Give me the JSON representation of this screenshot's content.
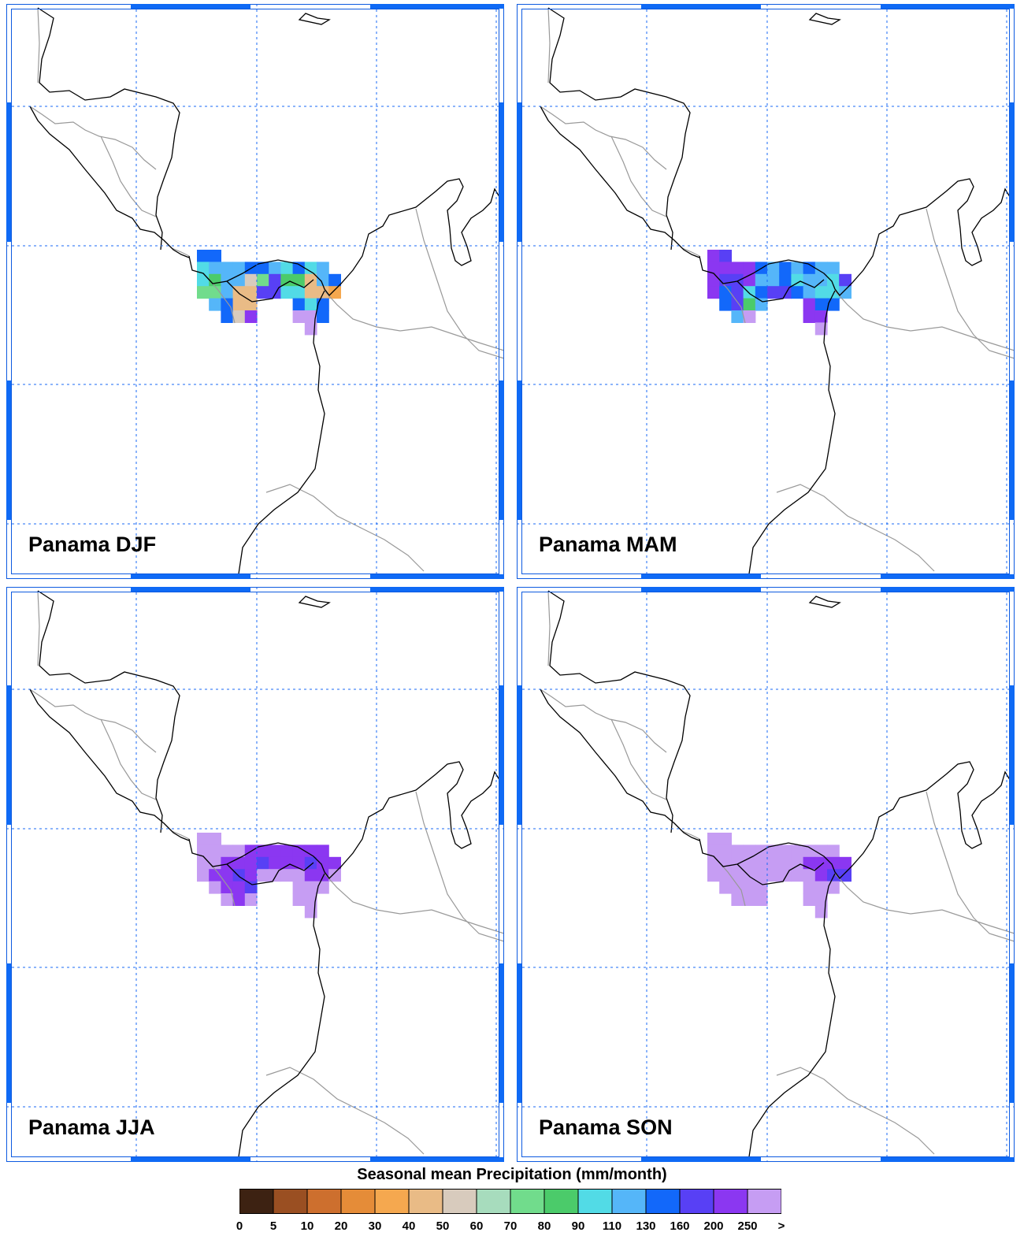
{
  "panels": [
    {
      "label": "Panama DJF",
      "season": "DJF"
    },
    {
      "label": "Panama MAM",
      "season": "MAM"
    },
    {
      "label": "Panama JJA",
      "season": "JJA"
    },
    {
      "label": "Panama SON",
      "season": "SON"
    }
  ],
  "legend": {
    "title": "Seasonal mean Precipitation (mm/month)",
    "ticks": [
      "0",
      "5",
      "10",
      "20",
      "30",
      "40",
      "50",
      "60",
      "70",
      "80",
      "90",
      "110",
      "130",
      "160",
      "200",
      "250",
      ">"
    ],
    "colors": [
      "#3d2212",
      "#9a4f22",
      "#cd6f2e",
      "#e58c38",
      "#f5a84f",
      "#e9bb86",
      "#d8cbbd",
      "#a7dcbd",
      "#71dc8c",
      "#4bcb6a",
      "#52dbe6",
      "#55b6f9",
      "#1268fa",
      "#5840f5",
      "#8b37f1",
      "#c69df3"
    ]
  },
  "map_style": {
    "grid_color": "#1a6af5",
    "coast_color": "#000000",
    "border_color": "#999999"
  },
  "precip_index": {
    "DJF": [
      [
        0,
        0,
        12
      ],
      [
        0,
        1,
        12
      ],
      [
        1,
        0,
        10
      ],
      [
        1,
        1,
        11
      ],
      [
        1,
        2,
        11
      ],
      [
        1,
        3,
        11
      ],
      [
        1,
        4,
        12
      ],
      [
        1,
        5,
        12
      ],
      [
        1,
        6,
        11
      ],
      [
        1,
        7,
        10
      ],
      [
        1,
        8,
        12
      ],
      [
        1,
        9,
        10
      ],
      [
        1,
        10,
        11
      ],
      [
        2,
        0,
        10
      ],
      [
        2,
        1,
        9
      ],
      [
        2,
        2,
        11
      ],
      [
        2,
        3,
        11
      ],
      [
        2,
        4,
        6
      ],
      [
        2,
        5,
        8
      ],
      [
        2,
        6,
        13
      ],
      [
        2,
        7,
        9
      ],
      [
        2,
        8,
        9
      ],
      [
        2,
        9,
        5
      ],
      [
        2,
        10,
        11
      ],
      [
        2,
        11,
        12
      ],
      [
        3,
        0,
        8
      ],
      [
        3,
        1,
        8
      ],
      [
        3,
        2,
        11
      ],
      [
        3,
        3,
        5
      ],
      [
        3,
        4,
        5
      ],
      [
        3,
        5,
        13
      ],
      [
        3,
        6,
        13
      ],
      [
        3,
        7,
        10
      ],
      [
        3,
        8,
        10
      ],
      [
        3,
        9,
        5
      ],
      [
        3,
        10,
        5
      ],
      [
        3,
        11,
        4
      ],
      [
        4,
        1,
        11
      ],
      [
        4,
        2,
        12
      ],
      [
        4,
        3,
        5
      ],
      [
        4,
        4,
        5
      ],
      [
        4,
        8,
        12
      ],
      [
        4,
        9,
        10
      ],
      [
        4,
        10,
        12
      ],
      [
        5,
        2,
        12
      ],
      [
        5,
        3,
        6
      ],
      [
        5,
        4,
        14
      ],
      [
        5,
        8,
        15
      ],
      [
        5,
        9,
        15
      ],
      [
        5,
        10,
        12
      ],
      [
        6,
        9,
        15
      ]
    ],
    "MAM": [
      [
        0,
        0,
        14
      ],
      [
        0,
        1,
        13
      ],
      [
        1,
        0,
        14
      ],
      [
        1,
        1,
        14
      ],
      [
        1,
        2,
        14
      ],
      [
        1,
        3,
        14
      ],
      [
        1,
        4,
        12
      ],
      [
        1,
        5,
        11
      ],
      [
        1,
        6,
        12
      ],
      [
        1,
        7,
        11
      ],
      [
        1,
        8,
        12
      ],
      [
        1,
        9,
        11
      ],
      [
        1,
        10,
        11
      ],
      [
        2,
        0,
        14
      ],
      [
        2,
        1,
        13
      ],
      [
        2,
        2,
        13
      ],
      [
        2,
        3,
        14
      ],
      [
        2,
        4,
        11
      ],
      [
        2,
        5,
        11
      ],
      [
        2,
        6,
        12
      ],
      [
        2,
        7,
        10
      ],
      [
        2,
        8,
        11
      ],
      [
        2,
        9,
        11
      ],
      [
        2,
        10,
        10
      ],
      [
        2,
        11,
        13
      ],
      [
        3,
        0,
        14
      ],
      [
        3,
        1,
        12
      ],
      [
        3,
        2,
        13
      ],
      [
        3,
        3,
        10
      ],
      [
        3,
        4,
        12
      ],
      [
        3,
        5,
        13
      ],
      [
        3,
        6,
        13
      ],
      [
        3,
        7,
        12
      ],
      [
        3,
        8,
        11
      ],
      [
        3,
        9,
        10
      ],
      [
        3,
        10,
        10
      ],
      [
        3,
        11,
        11
      ],
      [
        4,
        1,
        12
      ],
      [
        4,
        2,
        13
      ],
      [
        4,
        3,
        9
      ],
      [
        4,
        4,
        11
      ],
      [
        4,
        8,
        14
      ],
      [
        4,
        9,
        12
      ],
      [
        4,
        10,
        12
      ],
      [
        5,
        2,
        11
      ],
      [
        5,
        3,
        15
      ],
      [
        5,
        8,
        14
      ],
      [
        5,
        9,
        14
      ],
      [
        6,
        9,
        15
      ]
    ],
    "JJA": [
      [
        0,
        0,
        15
      ],
      [
        0,
        1,
        15
      ],
      [
        1,
        0,
        15
      ],
      [
        1,
        1,
        15
      ],
      [
        1,
        2,
        15
      ],
      [
        1,
        3,
        15
      ],
      [
        1,
        4,
        14
      ],
      [
        1,
        5,
        14
      ],
      [
        1,
        6,
        14
      ],
      [
        1,
        7,
        14
      ],
      [
        1,
        8,
        14
      ],
      [
        1,
        9,
        14
      ],
      [
        1,
        10,
        14
      ],
      [
        2,
        0,
        15
      ],
      [
        2,
        1,
        15
      ],
      [
        2,
        2,
        14
      ],
      [
        2,
        3,
        14
      ],
      [
        2,
        4,
        14
      ],
      [
        2,
        5,
        13
      ],
      [
        2,
        6,
        14
      ],
      [
        2,
        7,
        14
      ],
      [
        2,
        8,
        14
      ],
      [
        2,
        9,
        13
      ],
      [
        2,
        10,
        14
      ],
      [
        2,
        11,
        14
      ],
      [
        3,
        0,
        15
      ],
      [
        3,
        1,
        14
      ],
      [
        3,
        2,
        14
      ],
      [
        3,
        3,
        13
      ],
      [
        3,
        4,
        14
      ],
      [
        3,
        5,
        15
      ],
      [
        3,
        6,
        15
      ],
      [
        3,
        7,
        15
      ],
      [
        3,
        8,
        15
      ],
      [
        3,
        9,
        14
      ],
      [
        3,
        10,
        14
      ],
      [
        3,
        11,
        15
      ],
      [
        4,
        1,
        15
      ],
      [
        4,
        2,
        14
      ],
      [
        4,
        3,
        14
      ],
      [
        4,
        4,
        13
      ],
      [
        4,
        8,
        15
      ],
      [
        4,
        9,
        15
      ],
      [
        4,
        10,
        15
      ],
      [
        5,
        2,
        15
      ],
      [
        5,
        3,
        14
      ],
      [
        5,
        4,
        15
      ],
      [
        5,
        8,
        15
      ],
      [
        5,
        9,
        15
      ],
      [
        6,
        9,
        15
      ]
    ],
    "SON": [
      [
        0,
        0,
        15
      ],
      [
        0,
        1,
        15
      ],
      [
        1,
        0,
        15
      ],
      [
        1,
        1,
        15
      ],
      [
        1,
        2,
        15
      ],
      [
        1,
        3,
        15
      ],
      [
        1,
        4,
        15
      ],
      [
        1,
        5,
        15
      ],
      [
        1,
        6,
        15
      ],
      [
        1,
        7,
        15
      ],
      [
        1,
        8,
        15
      ],
      [
        1,
        9,
        15
      ],
      [
        1,
        10,
        15
      ],
      [
        2,
        0,
        15
      ],
      [
        2,
        1,
        15
      ],
      [
        2,
        2,
        15
      ],
      [
        2,
        3,
        15
      ],
      [
        2,
        4,
        15
      ],
      [
        2,
        5,
        15
      ],
      [
        2,
        6,
        15
      ],
      [
        2,
        7,
        15
      ],
      [
        2,
        8,
        14
      ],
      [
        2,
        9,
        14
      ],
      [
        2,
        10,
        14
      ],
      [
        2,
        11,
        14
      ],
      [
        3,
        0,
        15
      ],
      [
        3,
        1,
        15
      ],
      [
        3,
        2,
        15
      ],
      [
        3,
        3,
        15
      ],
      [
        3,
        4,
        15
      ],
      [
        3,
        5,
        15
      ],
      [
        3,
        6,
        15
      ],
      [
        3,
        7,
        15
      ],
      [
        3,
        8,
        15
      ],
      [
        3,
        9,
        14
      ],
      [
        3,
        10,
        13
      ],
      [
        3,
        11,
        13
      ],
      [
        4,
        1,
        15
      ],
      [
        4,
        2,
        15
      ],
      [
        4,
        3,
        15
      ],
      [
        4,
        4,
        15
      ],
      [
        4,
        8,
        15
      ],
      [
        4,
        9,
        15
      ],
      [
        4,
        10,
        15
      ],
      [
        5,
        2,
        15
      ],
      [
        5,
        3,
        15
      ],
      [
        5,
        4,
        15
      ],
      [
        5,
        8,
        15
      ],
      [
        5,
        9,
        15
      ],
      [
        6,
        9,
        15
      ]
    ]
  }
}
